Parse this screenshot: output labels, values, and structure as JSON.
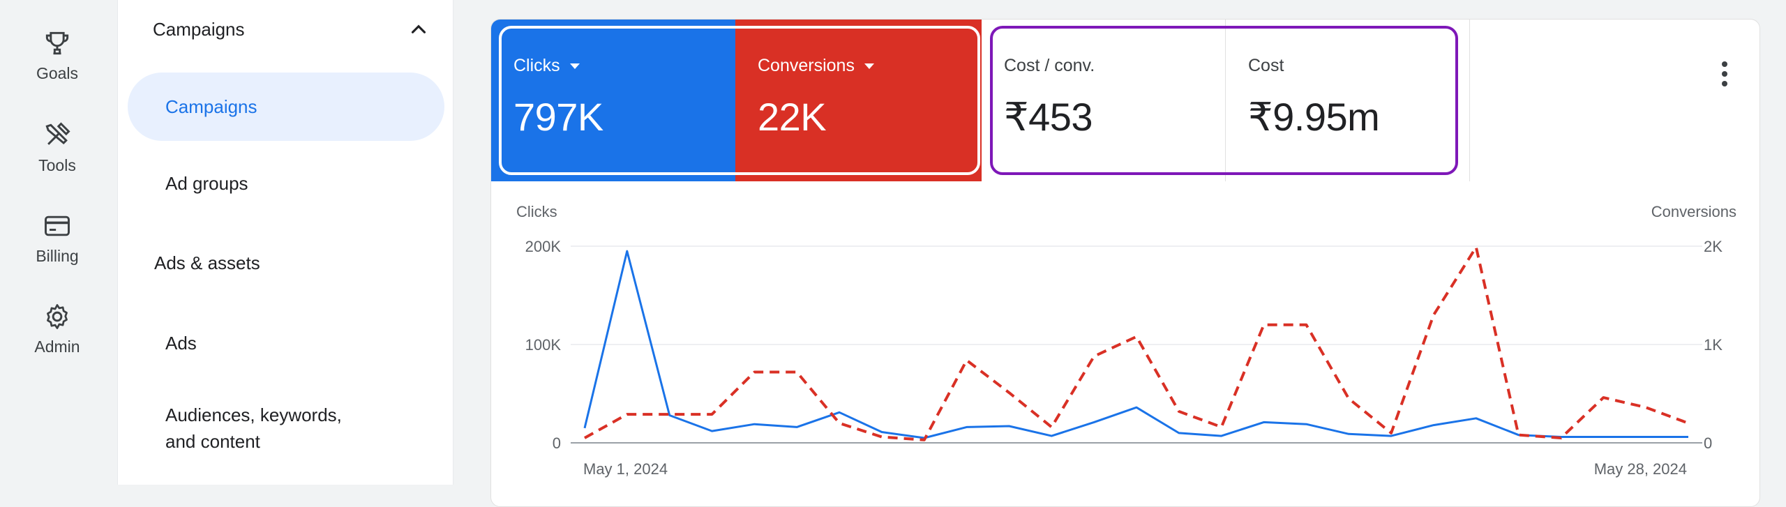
{
  "rail": [
    {
      "label": "Goals",
      "icon": "trophy-icon"
    },
    {
      "label": "Tools",
      "icon": "tools-icon"
    },
    {
      "label": "Billing",
      "icon": "credit-card-icon"
    },
    {
      "label": "Admin",
      "icon": "gear-icon"
    }
  ],
  "subnav": {
    "header": "Campaigns",
    "items": [
      "Campaigns",
      "Ad groups",
      "Ads & assets",
      "Ads",
      "Audiences, keywords,",
      "and content"
    ]
  },
  "scorecards": [
    {
      "title": "Clicks",
      "value": "797K",
      "color": "#1a73e8"
    },
    {
      "title": "Conversions",
      "value": "22K",
      "color": "#d93025"
    },
    {
      "title": "Cost / conv.",
      "value": "₹453"
    },
    {
      "title": "Cost",
      "value": "₹9.95m"
    }
  ],
  "chart_data": {
    "type": "line",
    "x_labels": [
      "May 1, 2024",
      "May 28, 2024"
    ],
    "left_axis": {
      "title": "Clicks",
      "ticks": [
        "200K",
        "100K",
        "0"
      ],
      "ylim": [
        0,
        200000
      ]
    },
    "right_axis": {
      "title": "Conversions",
      "ticks": [
        "2K",
        "1K",
        "0"
      ],
      "ylim": [
        0,
        2000
      ]
    },
    "series": [
      {
        "name": "Clicks",
        "axis": "left",
        "color": "#1a73e8",
        "style": "solid",
        "values": [
          15000,
          195000,
          28000,
          12000,
          19000,
          16000,
          31000,
          11000,
          5000,
          16000,
          17000,
          7000,
          21000,
          36000,
          10000,
          7000,
          21000,
          19000,
          9000,
          7000,
          18000,
          25000,
          8000,
          6000,
          6000,
          6000,
          6000
        ]
      },
      {
        "name": "Conversions",
        "axis": "right",
        "color": "#d93025",
        "style": "dashed",
        "values": [
          50,
          290,
          290,
          290,
          720,
          720,
          200,
          60,
          30,
          840,
          510,
          160,
          880,
          1080,
          320,
          160,
          1200,
          1200,
          450,
          100,
          1300,
          1990,
          80,
          50,
          460,
          360,
          200
        ]
      }
    ],
    "grid": true
  }
}
